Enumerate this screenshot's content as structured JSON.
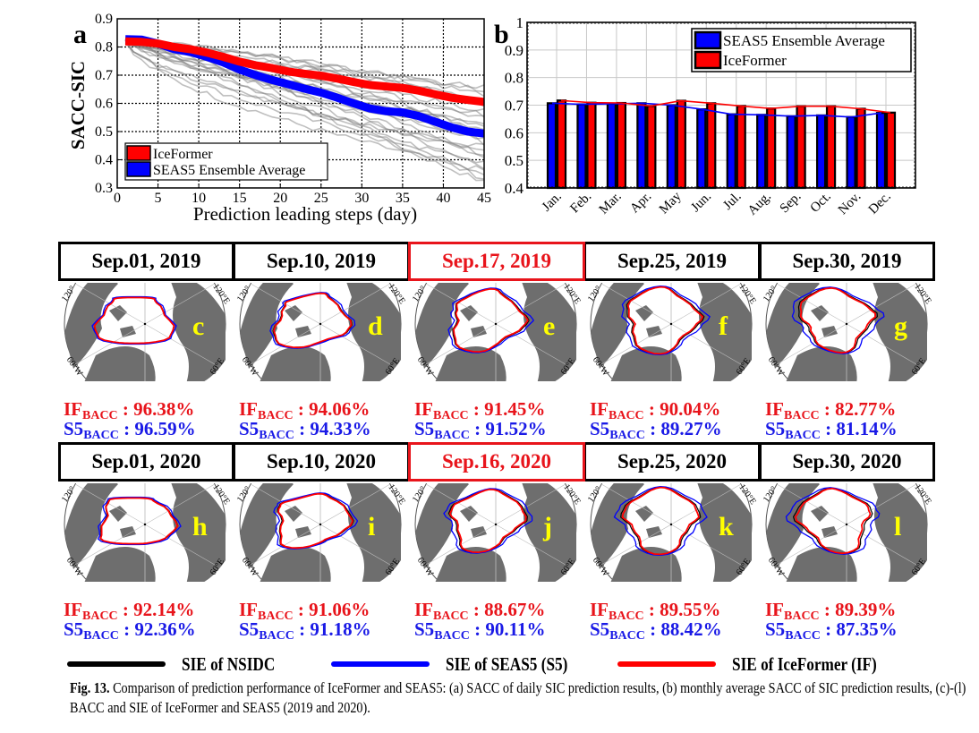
{
  "chart_data": [
    {
      "panel": "a",
      "type": "line",
      "xlabel": "Prediction leading steps (day)",
      "ylabel": "SACC-SIC",
      "xlim": [
        0,
        45
      ],
      "ylim": [
        0.3,
        0.9
      ],
      "xticks": [
        0,
        5,
        10,
        15,
        20,
        25,
        30,
        35,
        40,
        45
      ],
      "yticks": [
        0.3,
        0.4,
        0.5,
        0.6,
        0.7,
        0.8,
        0.9
      ],
      "grid": true,
      "legend_position": "bottom-left",
      "x": [
        1,
        3,
        5,
        7,
        9,
        11,
        13,
        15,
        17,
        19,
        21,
        23,
        25,
        27,
        29,
        31,
        33,
        35,
        37,
        39,
        41,
        43,
        45
      ],
      "series": [
        {
          "name": "IceFormer",
          "color": "#ff0000",
          "values": [
            0.82,
            0.818,
            0.812,
            0.8,
            0.792,
            0.78,
            0.765,
            0.748,
            0.735,
            0.725,
            0.713,
            0.705,
            0.698,
            0.688,
            0.676,
            0.665,
            0.66,
            0.655,
            0.645,
            0.632,
            0.62,
            0.612,
            0.605
          ]
        },
        {
          "name": "SEAS5 Ensemble Average",
          "color": "#0000ff",
          "values": [
            0.828,
            0.826,
            0.812,
            0.792,
            0.782,
            0.765,
            0.745,
            0.72,
            0.7,
            0.683,
            0.668,
            0.652,
            0.638,
            0.62,
            0.6,
            0.582,
            0.572,
            0.568,
            0.555,
            0.535,
            0.515,
            0.5,
            0.493
          ]
        }
      ],
      "ensemble_members": {
        "name": "SEAS5 ensemble members",
        "color": "#808080",
        "count": 25,
        "start": 0.82,
        "end_range": [
          0.32,
          0.66
        ]
      }
    },
    {
      "panel": "b",
      "type": "bar",
      "ylim": [
        0.4,
        1.0
      ],
      "yticks": [
        0.4,
        0.5,
        0.6,
        0.7,
        0.8,
        0.9,
        1.0
      ],
      "grid": true,
      "legend_position": "top-right",
      "categories": [
        "Jan.",
        "Feb.",
        "Mar.",
        "Apr.",
        "May",
        "Jun.",
        "Jul.",
        "Aug.",
        "Sep.",
        "Oct.",
        "Nov.",
        "Dec."
      ],
      "series": [
        {
          "name": "SEAS5 Ensemble Average",
          "color": "#0000ff",
          "values": [
            0.707,
            0.703,
            0.705,
            0.707,
            0.7,
            0.685,
            0.667,
            0.665,
            0.66,
            0.663,
            0.657,
            0.672
          ]
        },
        {
          "name": "IceFormer",
          "color": "#ff0000",
          "values": [
            0.717,
            0.709,
            0.708,
            0.697,
            0.716,
            0.707,
            0.697,
            0.688,
            0.696,
            0.696,
            0.687,
            0.673
          ]
        }
      ]
    }
  ],
  "panel_labels": {
    "a": "a",
    "b": "b"
  },
  "rows": [
    {
      "panels": [
        {
          "date": "Sep.01, 2019",
          "letter": "c",
          "highlight": false,
          "if_label": "IF",
          "s5_label": "S5",
          "sub": "BACC",
          "if_bacc": "96.38%",
          "s5_bacc": "96.59%"
        },
        {
          "date": "Sep.10, 2019",
          "letter": "d",
          "highlight": false,
          "if_label": "IF",
          "s5_label": "S5",
          "sub": "BACC",
          "if_bacc": "94.06%",
          "s5_bacc": "94.33%"
        },
        {
          "date": "Sep.17, 2019",
          "letter": "e",
          "highlight": true,
          "if_label": "IF",
          "s5_label": "S5",
          "sub": "BACC",
          "if_bacc": "91.45%",
          "s5_bacc": "91.52%"
        },
        {
          "date": "Sep.25, 2019",
          "letter": "f",
          "highlight": false,
          "if_label": "IF",
          "s5_label": "S5",
          "sub": "BACC",
          "if_bacc": "90.04%",
          "s5_bacc": "89.27%"
        },
        {
          "date": "Sep.30, 2019",
          "letter": "g",
          "highlight": false,
          "if_label": "IF",
          "s5_label": "S5",
          "sub": "BACC",
          "if_bacc": "82.77%",
          "s5_bacc": "81.14%"
        }
      ]
    },
    {
      "panels": [
        {
          "date": "Sep.01, 2020",
          "letter": "h",
          "highlight": false,
          "if_label": "IF",
          "s5_label": "S5",
          "sub": "BACC",
          "if_bacc": "92.14%",
          "s5_bacc": "92.36%"
        },
        {
          "date": "Sep.10, 2020",
          "letter": "i",
          "highlight": false,
          "if_label": "IF",
          "s5_label": "S5",
          "sub": "BACC",
          "if_bacc": "91.06%",
          "s5_bacc": "91.18%"
        },
        {
          "date": "Sep.16, 2020",
          "letter": "j",
          "highlight": true,
          "if_label": "IF",
          "s5_label": "S5",
          "sub": "BACC",
          "if_bacc": "88.67%",
          "s5_bacc": "90.11%"
        },
        {
          "date": "Sep.25, 2020",
          "letter": "k",
          "highlight": false,
          "if_label": "IF",
          "s5_label": "S5",
          "sub": "BACC",
          "if_bacc": "89.55%",
          "s5_bacc": "88.42%"
        },
        {
          "date": "Sep.30, 2020",
          "letter": "l",
          "highlight": false,
          "if_label": "IF",
          "s5_label": "S5",
          "sub": "BACC",
          "if_bacc": "89.39%",
          "s5_bacc": "87.35%"
        }
      ]
    }
  ],
  "map_labels": {
    "lon_120w": "120°",
    "lon_120e": "120°E",
    "lon_60w": "60°W",
    "lon_60e": "60°E"
  },
  "legend": [
    {
      "label": "SIE of NSIDC",
      "color": "#000000"
    },
    {
      "label": "SIE of SEAS5 (S5)",
      "color": "#0000ff"
    },
    {
      "label": "SIE of IceFormer (IF)",
      "color": "#ff0000"
    }
  ],
  "caption": {
    "label": "Fig. 13.",
    "text": "Comparison of prediction performance of IceFormer and SEAS5: (a) SACC of daily SIC prediction results, (b) monthly average SACC of SIC prediction results, (c)-(l) BACC and SIE of IceFormer and SEAS5 (2019 and 2020)."
  },
  "colors": {
    "if_red": "#e8141b",
    "s5_blue": "#1a1ae6",
    "land_grey": "#6e6e6e",
    "letter_yellow": "#ffff00"
  }
}
